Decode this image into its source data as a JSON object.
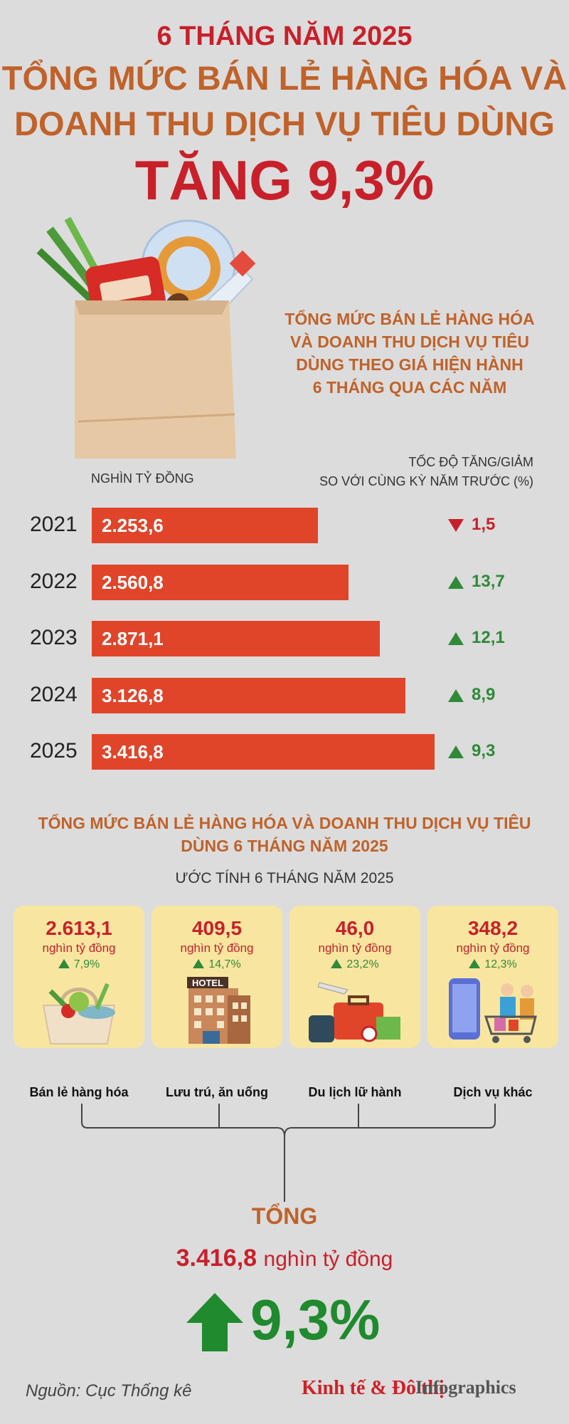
{
  "header": {
    "subtitle": "6 THÁNG NĂM 2025",
    "headline_line1": "TỔNG MỨC BÁN LẺ HÀNG HÓA VÀ",
    "headline_line2": "DOANH THU DỊCH VỤ TIÊU DÙNG",
    "headline_line3": "TĂNG 9,3%"
  },
  "chart_section": {
    "title_lines": [
      "TỔNG MỨC BÁN LẺ HÀNG HÓA",
      "VÀ DOANH THU DỊCH VỤ TIÊU",
      "DÙNG THEO GIÁ HIỆN HÀNH",
      "6 THÁNG QUA CÁC NĂM"
    ],
    "unit_label": "NGHÌN TỶ ĐỒNG",
    "rate_label_line1": "TỐC ĐỘ TĂNG/GIẢM",
    "rate_label_line2": "SO VỚI CÙNG KỲ NĂM TRƯỚC (%)"
  },
  "chart_data": {
    "type": "bar",
    "categories": [
      "2021",
      "2022",
      "2023",
      "2024",
      "2025"
    ],
    "values": [
      2253.6,
      2560.8,
      2871.1,
      3126.8,
      3416.8
    ],
    "value_labels": [
      "2.253,6",
      "2.560,8",
      "2.871,1",
      "3.126,8",
      "3.416,8"
    ],
    "rates": [
      "1,5",
      "13,7",
      "12,1",
      "8,9",
      "9,3"
    ],
    "rate_directions": [
      "down",
      "up",
      "up",
      "up",
      "up"
    ],
    "bar_color": "#e0452a",
    "up_color": "#2f8a3a",
    "down_color": "#c8202a"
  },
  "section2": {
    "title_line1": "TỔNG MỨC BÁN LẺ HÀNG HÓA VÀ DOANH THU DỊCH VỤ TIÊU",
    "title_line2": "DÙNG 6 THÁNG NĂM 2025",
    "estimate_label": "ƯỚC TÍNH 6 THÁNG NĂM 2025",
    "cards": [
      {
        "value": "2.613,1",
        "unit": "nghìn tỷ đồng",
        "rate": "7,9%",
        "label": "Bán lẻ hàng hóa",
        "icon": "grocery-bag-icon"
      },
      {
        "value": "409,5",
        "unit": "nghìn tỷ đồng",
        "rate": "14,7%",
        "label": "Lưu trú, ăn uống",
        "icon": "hotel-icon",
        "icon_text": "HOTEL"
      },
      {
        "value": "46,0",
        "unit": "nghìn tỷ đồng",
        "rate": "23,2%",
        "label": "Du lịch lữ hành",
        "icon": "travel-luggage-icon"
      },
      {
        "value": "348,2",
        "unit": "nghìn tỷ đồng",
        "rate": "12,3%",
        "label": "Dịch vụ khác",
        "icon": "online-shopping-icon"
      }
    ]
  },
  "total": {
    "title": "TỔNG",
    "value": "3.416,8",
    "unit": "nghìn tỷ đồng",
    "rate": "9,3%"
  },
  "footer": {
    "source": "Nguồn: Cục Thống kê",
    "brand": "Kinh tế & Đô thị",
    "brand_sub": "Infographics"
  },
  "colors": {
    "background": "#dcdcdc",
    "brown_title": "#c0622a",
    "red": "#c8202a",
    "green": "#2f8a3a",
    "card_bg": "#f8e6a0"
  }
}
